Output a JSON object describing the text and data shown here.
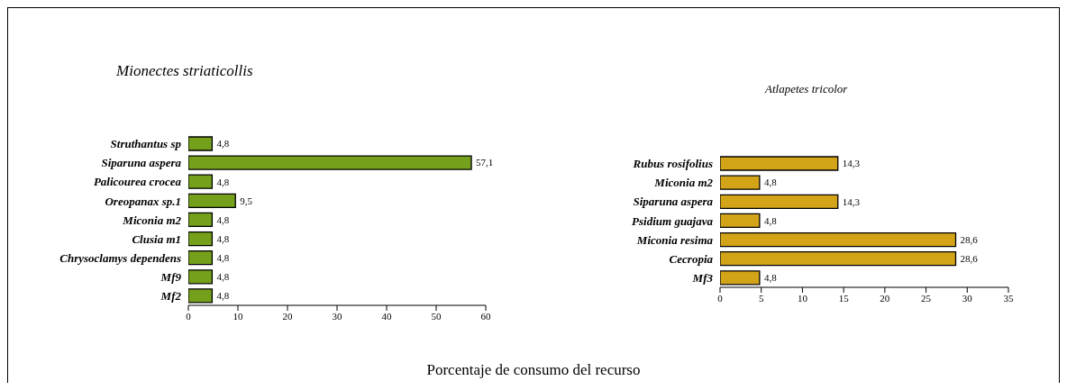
{
  "chart_data": [
    {
      "type": "bar",
      "orientation": "horizontal",
      "title": "Mionectes striaticollis",
      "xlabel": "Porcentaje de consumo del recurso",
      "categories": [
        "Struthantus sp",
        "Siparuna aspera",
        "Palicourea crocea",
        "Oreopanax sp.1",
        "Miconia m2",
        "Clusia m1",
        "Chrysoclamys dependens",
        "Mf9",
        "Mf2"
      ],
      "values": [
        4.8,
        57.1,
        4.8,
        9.5,
        4.8,
        4.8,
        4.8,
        4.8,
        4.8
      ],
      "value_labels": [
        "4,8",
        "57,1",
        "4,8",
        "9,5",
        "4,8",
        "4,8",
        "4,8",
        "4,8",
        "4,8"
      ],
      "color": "#74a01c",
      "xlim": [
        0,
        60
      ],
      "xticks": [
        0,
        10,
        20,
        30,
        40,
        50,
        60
      ]
    },
    {
      "type": "bar",
      "orientation": "horizontal",
      "title": "Atlapetes tricolor",
      "categories": [
        "Rubus rosifolius",
        "Miconia m2",
        "Siparuna aspera",
        "Psidium guajava",
        "Miconia resima",
        "Cecropia",
        "Mf3"
      ],
      "values": [
        14.3,
        4.8,
        14.3,
        4.8,
        28.6,
        28.6,
        4.8
      ],
      "value_labels": [
        "14,3",
        "4,8",
        "14,3",
        "4,8",
        "28,6",
        "28,6",
        "4,8"
      ],
      "color": "#d4a418",
      "xlim": [
        0,
        35
      ],
      "xticks": [
        0,
        5,
        10,
        15,
        20,
        25,
        30,
        35
      ]
    }
  ]
}
